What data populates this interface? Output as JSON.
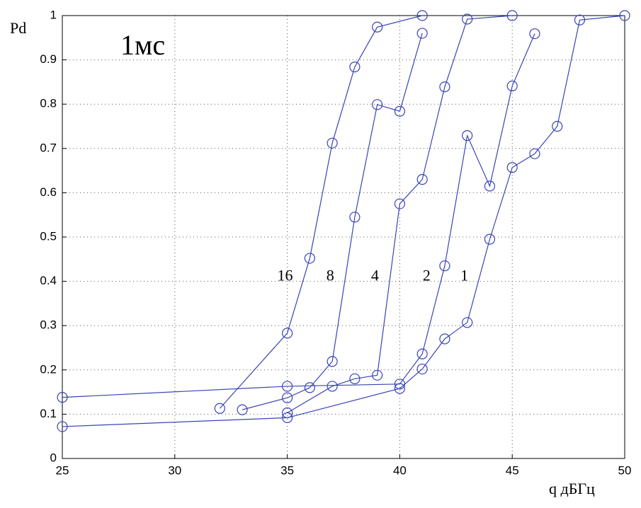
{
  "chart_data": {
    "type": "line",
    "annotation": "1мс",
    "y_label": "Pd",
    "x_label": "q дБГц",
    "xlim": [
      25,
      50
    ],
    "xticks": [
      25,
      30,
      35,
      40,
      45,
      50
    ],
    "ylim": [
      0,
      1
    ],
    "yticks": [
      0,
      0.1,
      0.2,
      0.3,
      0.4,
      0.5,
      0.6,
      0.7,
      0.8,
      0.9,
      1
    ],
    "grid": true,
    "series": [
      {
        "name": "16",
        "color": "#3a44b4",
        "x": [
          32,
          35,
          36,
          37,
          38,
          39,
          41
        ],
        "values": [
          0.113,
          0.283,
          0.452,
          0.712,
          0.884,
          0.974,
          1.0
        ]
      },
      {
        "name": "8",
        "color": "#3a44b4",
        "x": [
          33,
          35,
          36,
          37,
          38,
          39,
          40,
          41
        ],
        "values": [
          0.11,
          0.137,
          0.16,
          0.219,
          0.545,
          0.799,
          0.784,
          0.96
        ]
      },
      {
        "name": "4",
        "color": "#3a44b4",
        "x": [
          35,
          37,
          38,
          39,
          40,
          41,
          42,
          43,
          45
        ],
        "values": [
          0.103,
          0.163,
          0.18,
          0.188,
          0.575,
          0.63,
          0.839,
          0.992,
          1.0
        ]
      },
      {
        "name": "2",
        "color": "#3a44b4",
        "x": [
          25,
          35,
          40,
          41,
          42,
          43,
          44,
          45,
          46
        ],
        "values": [
          0.138,
          0.163,
          0.168,
          0.236,
          0.435,
          0.729,
          0.615,
          0.841,
          0.959
        ]
      },
      {
        "name": "1",
        "color": "#3a44b4",
        "x": [
          25,
          35,
          40,
          41,
          42,
          43,
          44,
          45,
          46,
          47,
          48,
          50
        ],
        "values": [
          0.072,
          0.092,
          0.158,
          0.202,
          0.27,
          0.307,
          0.495,
          0.657,
          0.688,
          0.75,
          0.99,
          1.0
        ]
      }
    ]
  }
}
